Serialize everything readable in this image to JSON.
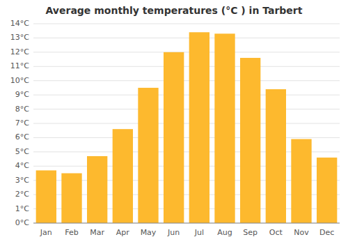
{
  "chart_data": {
    "type": "bar",
    "title": "Average monthly temperatures (°C ) in Tarbert",
    "categories": [
      "Jan",
      "Feb",
      "Mar",
      "Apr",
      "May",
      "Jun",
      "Jul",
      "Aug",
      "Sep",
      "Oct",
      "Nov",
      "Dec"
    ],
    "values": [
      3.7,
      3.5,
      4.7,
      6.6,
      9.5,
      12.0,
      13.4,
      13.3,
      11.6,
      9.4,
      5.9,
      4.6
    ],
    "color": "#FDB92E",
    "ylim": [
      0,
      14
    ],
    "yticks": [
      {
        "value": 0,
        "label": "0°C"
      },
      {
        "value": 1,
        "label": "1°C"
      },
      {
        "value": 2,
        "label": "2°C"
      },
      {
        "value": 3,
        "label": "3°C"
      },
      {
        "value": 4,
        "label": "4°C"
      },
      {
        "value": 5,
        "label": "5°C"
      },
      {
        "value": 6,
        "label": "6°C"
      },
      {
        "value": 7,
        "label": "7°C"
      },
      {
        "value": 8,
        "label": "8°C"
      },
      {
        "value": 9,
        "label": "9°C"
      },
      {
        "value": 10,
        "label": "10°C"
      },
      {
        "value": 11,
        "label": "11°C"
      },
      {
        "value": 12,
        "label": "12°C"
      },
      {
        "value": 13,
        "label": "13°C"
      },
      {
        "value": 14,
        "label": "14°C"
      }
    ],
    "grid": true
  }
}
